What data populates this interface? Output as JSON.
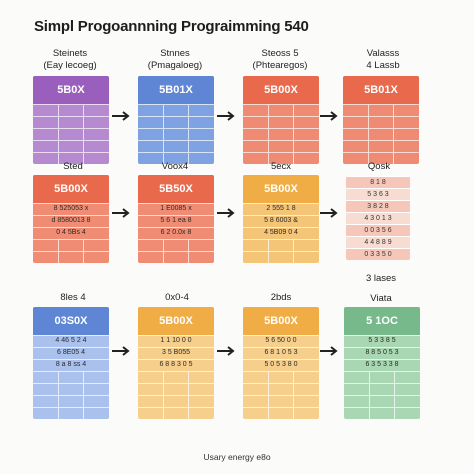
{
  "title": "Simpl Progoannning Prograimming 540",
  "columns": [
    {
      "line1": "Steinets",
      "line2": "(Eay lecoeg)"
    },
    {
      "line1": "Stnnes",
      "line2": "(Pmagaloeg)"
    },
    {
      "line1": "Steoss 5",
      "line2": "(Phtearegos)"
    },
    {
      "line1": "Valasss",
      "line2": "4 Lassb"
    }
  ],
  "row_labels": {
    "r2": [
      "Sted",
      "Voox4",
      "5ecx",
      "Qosk"
    ],
    "r3": [
      "8les 4",
      "0x0-4",
      "2bds",
      "3 lases",
      "Viata"
    ]
  },
  "colors": {
    "purple": "#9a5fbd",
    "blue": "#5f86d4",
    "red": "#e8694c",
    "orange": "#f0ad45",
    "green": "#78b98b"
  },
  "row1": [
    {
      "label": "5B0X",
      "color": "#9a5fbd",
      "tint": "#b58ad0"
    },
    {
      "label": "5B01X",
      "color": "#5f86d4",
      "tint": "#7fa2e2"
    },
    {
      "label": "5B00X",
      "color": "#e8694c",
      "tint": "#ef8b73"
    },
    {
      "label": "5B01X",
      "color": "#e8694c",
      "tint": "#ef8b73"
    }
  ],
  "row2": [
    {
      "label": "5B00X",
      "color": "#e8694c",
      "tint": "#f08c74",
      "values": [
        "8 525053 x",
        "d 8580013 8",
        "0 4 5Bs 4"
      ]
    },
    {
      "label": "5B50X",
      "color": "#e8694c",
      "tint": "#f08c74",
      "values": [
        "1 E0085 x",
        "5 6 1 ea 8",
        "6 2 0.0x 8"
      ]
    },
    {
      "label": "5B00X",
      "color": "#f0ad45",
      "tint": "#f5c577",
      "values": [
        "2 555 1 8",
        "5 8 6003 &",
        "4 5B09 0 4"
      ]
    }
  ],
  "row2_list": [
    "8 1 8",
    "5 3 6 3",
    "3 8 2 8",
    "4 3 0 1 3",
    "0 0 3 5 6",
    "4 4 8 8 9",
    "0 3 3 5 0"
  ],
  "row3": [
    {
      "label": "03S0X",
      "color": "#5f86d4",
      "tint": "#a9c1ec",
      "values": [
        "4 46 5 2 4",
        "6 8E05 4",
        "8 a 8 ss 4"
      ]
    },
    {
      "label": "5B00X",
      "color": "#f0ad45",
      "tint": "#f7cf8d",
      "values": [
        "1 1 10 0 0",
        "3 5 B055",
        "6 8 8 3 0 5"
      ]
    },
    {
      "label": "5B00X",
      "color": "#f0ad45",
      "tint": "#f7cf8d",
      "values": [
        "5 6 50 0 0",
        "6 8 1 0 5 3",
        "5 0 5 3 8 0"
      ]
    },
    {
      "label": "5 1OC",
      "color": "#78b98b",
      "tint": "#a9d6b3",
      "values": [
        "5 3 3 8 5",
        "8 8 5 0 5 3",
        "6 3 5 3 3 8"
      ]
    }
  ],
  "footer": "Usary energy e8o"
}
